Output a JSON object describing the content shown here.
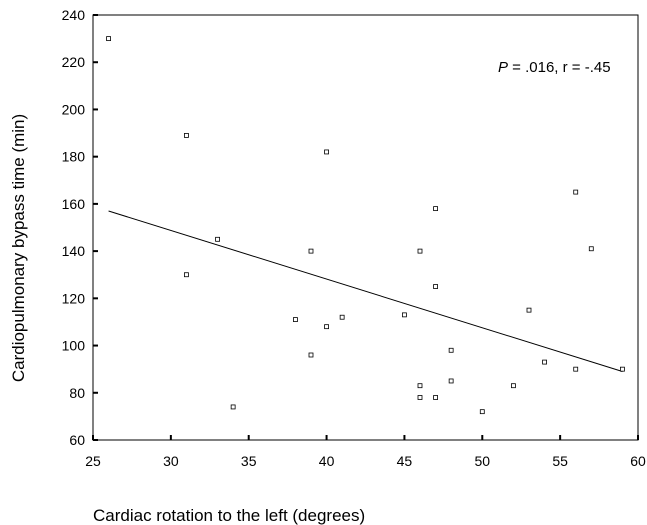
{
  "chart_data": {
    "type": "scatter",
    "title": "",
    "xlabel": "Cardiac rotation to the left (degrees)",
    "ylabel": "Cardiopulmonary bypass time (min)",
    "xlim": [
      25,
      60
    ],
    "ylim": [
      60,
      240
    ],
    "x_ticks": [
      25,
      30,
      35,
      40,
      45,
      50,
      55,
      60
    ],
    "y_ticks": [
      60,
      80,
      100,
      120,
      140,
      160,
      180,
      200,
      220,
      240
    ],
    "annotation": {
      "p_label": "P",
      "rest": " = .016, r  = -.45"
    },
    "points": [
      {
        "x": 26,
        "y": 230
      },
      {
        "x": 31,
        "y": 189
      },
      {
        "x": 31,
        "y": 130
      },
      {
        "x": 33,
        "y": 145
      },
      {
        "x": 34,
        "y": 74
      },
      {
        "x": 38,
        "y": 111
      },
      {
        "x": 39,
        "y": 140
      },
      {
        "x": 39,
        "y": 96
      },
      {
        "x": 40,
        "y": 182
      },
      {
        "x": 40,
        "y": 108
      },
      {
        "x": 41,
        "y": 112
      },
      {
        "x": 45,
        "y": 113
      },
      {
        "x": 46,
        "y": 140
      },
      {
        "x": 46,
        "y": 83
      },
      {
        "x": 46,
        "y": 78
      },
      {
        "x": 47,
        "y": 158
      },
      {
        "x": 47,
        "y": 125
      },
      {
        "x": 47,
        "y": 78
      },
      {
        "x": 48,
        "y": 98
      },
      {
        "x": 48,
        "y": 85
      },
      {
        "x": 50,
        "y": 72
      },
      {
        "x": 52,
        "y": 83
      },
      {
        "x": 53,
        "y": 115
      },
      {
        "x": 54,
        "y": 93
      },
      {
        "x": 56,
        "y": 165
      },
      {
        "x": 56,
        "y": 90
      },
      {
        "x": 57,
        "y": 141
      },
      {
        "x": 59,
        "y": 90
      }
    ],
    "fit_line": [
      {
        "x": 26,
        "y": 157
      },
      {
        "x": 59,
        "y": 89
      }
    ],
    "grid": false,
    "colors": {
      "axis": "#000000",
      "marker": "#000000",
      "background": "#ffffff"
    }
  }
}
